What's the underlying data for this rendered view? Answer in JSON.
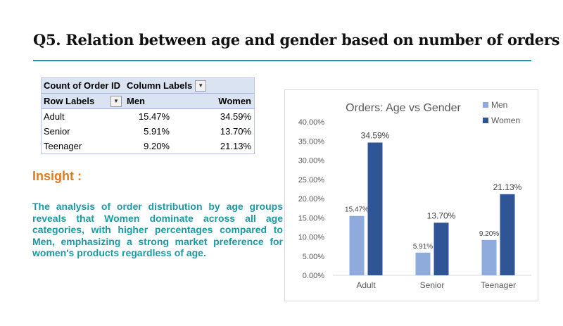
{
  "slide": {
    "title": "Q5. Relation between age and gender based on number of orders"
  },
  "pivot": {
    "corner": "Count of Order ID",
    "column_labels": "Column Labels",
    "row_labels": "Row Labels",
    "col_men": "Men",
    "col_women": "Women",
    "rows": [
      {
        "label": "Adult",
        "men": "15.47%",
        "women": "34.59%"
      },
      {
        "label": "Senior",
        "men": "5.91%",
        "women": "13.70%"
      },
      {
        "label": "Teenager",
        "men": "9.20%",
        "women": "21.13%"
      }
    ]
  },
  "insight": {
    "title": "Insight :",
    "body": "The analysis of order distribution by age groups reveals that Women dominate across all age categories, with higher percentages compared to Men, emphasizing a strong market preference for women's products regardless of age."
  },
  "colors": {
    "accent": "#1a9aa3",
    "insight_title": "#e07a1f",
    "men": "#8faadc",
    "women": "#2f5597"
  },
  "chart_data": {
    "type": "bar",
    "title": "Orders: Age vs Gender",
    "categories": [
      "Adult",
      "Senior",
      "Teenager"
    ],
    "series": [
      {
        "name": "Men",
        "values": [
          15.47,
          5.91,
          9.2
        ],
        "labels": [
          "15.47%",
          "5.91%",
          "9.20%"
        ],
        "color": "#8faadc"
      },
      {
        "name": "Women",
        "values": [
          34.59,
          13.7,
          21.13
        ],
        "labels": [
          "34.59%",
          "13.70%",
          "21.13%"
        ],
        "color": "#2f5597"
      }
    ],
    "ylim": [
      0,
      40
    ],
    "ytick_labels": [
      "0.00%",
      "5.00%",
      "10.00%",
      "15.00%",
      "20.00%",
      "25.00%",
      "30.00%",
      "35.00%",
      "40.00%"
    ],
    "grid": false,
    "legend": "top-right"
  }
}
